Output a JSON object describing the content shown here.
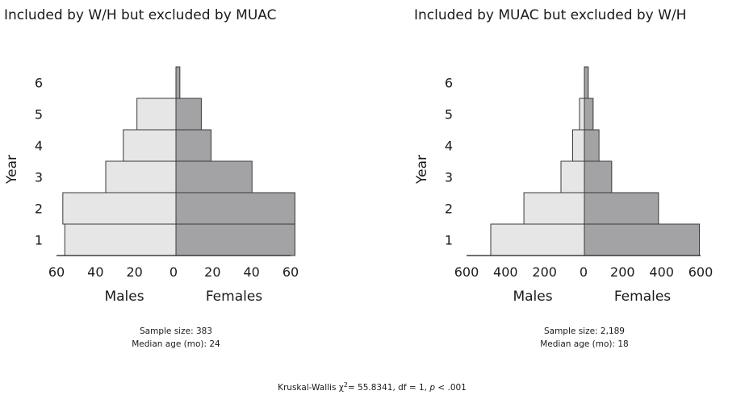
{
  "chart_data": [
    {
      "type": "bar",
      "title": "Included by W/H but excluded by MUAC",
      "ylabel": "Year",
      "categories": [
        "1",
        "2",
        "3",
        "4",
        "5",
        "6"
      ],
      "series": [
        {
          "name": "Males",
          "values": [
            57,
            58,
            36,
            27,
            20,
            0
          ]
        },
        {
          "name": "Females",
          "values": [
            61,
            61,
            39,
            18,
            13,
            2
          ]
        }
      ],
      "xticks": [
        "60",
        "40",
        "20",
        "0",
        "20",
        "40",
        "60"
      ],
      "xlim": [
        -60,
        60
      ],
      "sample_size_text": "Sample size: 383",
      "median_age_text": "Median age (mo): 24",
      "colors": {
        "Males": "#e6e6e6",
        "Females": "#a3a3a5"
      }
    },
    {
      "type": "bar",
      "title": "Included by MUAC but excluded by W/H",
      "ylabel": "Year",
      "categories": [
        "1",
        "2",
        "3",
        "4",
        "5",
        "6"
      ],
      "series": [
        {
          "name": "Males",
          "values": [
            480,
            310,
            120,
            60,
            25,
            0
          ]
        },
        {
          "name": "Females",
          "values": [
            590,
            380,
            140,
            75,
            45,
            20
          ]
        }
      ],
      "xticks": [
        "600",
        "400",
        "200",
        "0",
        "200",
        "400",
        "600"
      ],
      "xlim": [
        -600,
        600
      ],
      "sample_size_text": "Sample size: 2,189",
      "median_age_text": "Median age (mo): 18",
      "colors": {
        "Males": "#e6e6e6",
        "Females": "#a3a3a5"
      }
    }
  ],
  "footer": {
    "prefix": "Kruskal-Wallis χ",
    "sup": "2",
    "middle": "= 55.8341, df = 1, ",
    "p_label": "p",
    "suffix": " < .001"
  }
}
